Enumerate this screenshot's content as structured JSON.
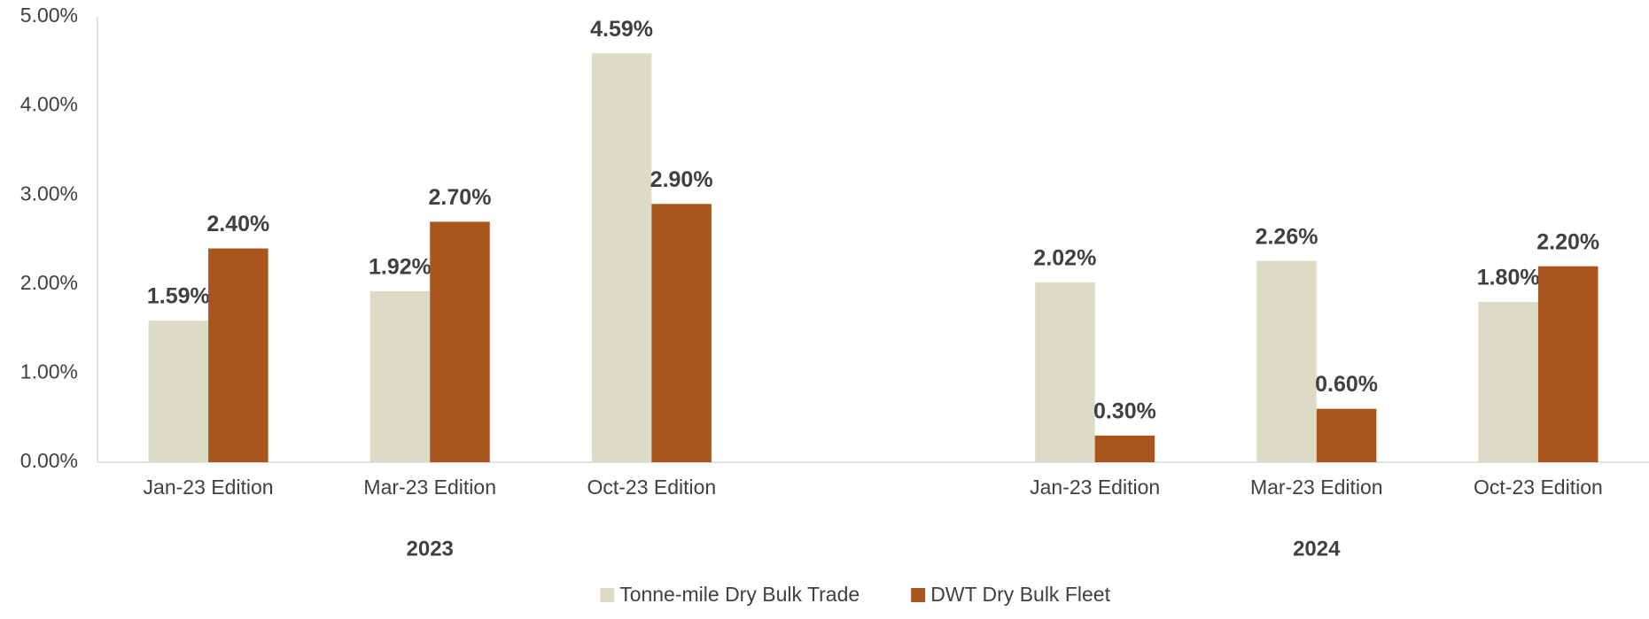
{
  "chart_data": {
    "type": "bar",
    "groups": [
      {
        "name": "2023",
        "categories": [
          "Jan-23 Edition",
          "Mar-23 Edition",
          "Oct-23 Edition"
        ]
      },
      {
        "name": "2024",
        "categories": [
          "Jan-23 Edition",
          "Mar-23 Edition",
          "Oct-23 Edition"
        ]
      }
    ],
    "series": [
      {
        "name": "Tonne-mile Dry Bulk Trade",
        "color": "#dcdcc6",
        "values": [
          [
            1.59,
            1.92,
            4.59
          ],
          [
            2.02,
            2.26,
            1.8
          ]
        ],
        "value_labels": [
          [
            "1.59%",
            "1.92%",
            "4.59%"
          ],
          [
            "2.02%",
            "2.26%",
            "1.80%"
          ]
        ]
      },
      {
        "name": "DWT Dry Bulk Fleet",
        "color": "#a9561e",
        "values": [
          [
            2.4,
            2.7,
            2.9
          ],
          [
            0.3,
            0.6,
            2.2
          ]
        ],
        "value_labels": [
          [
            "2.40%",
            "2.70%",
            "2.90%"
          ],
          [
            "0.30%",
            "0.60%",
            "2.20%"
          ]
        ]
      }
    ],
    "ylim": [
      0,
      5
    ],
    "yticks": [
      {
        "value": 0,
        "label": "0.00%"
      },
      {
        "value": 1,
        "label": "1.00%"
      },
      {
        "value": 2,
        "label": "2.00%"
      },
      {
        "value": 3,
        "label": "3.00%"
      },
      {
        "value": 4,
        "label": "4.00%"
      },
      {
        "value": 5,
        "label": "5.00%"
      }
    ],
    "legend": "bottom"
  }
}
